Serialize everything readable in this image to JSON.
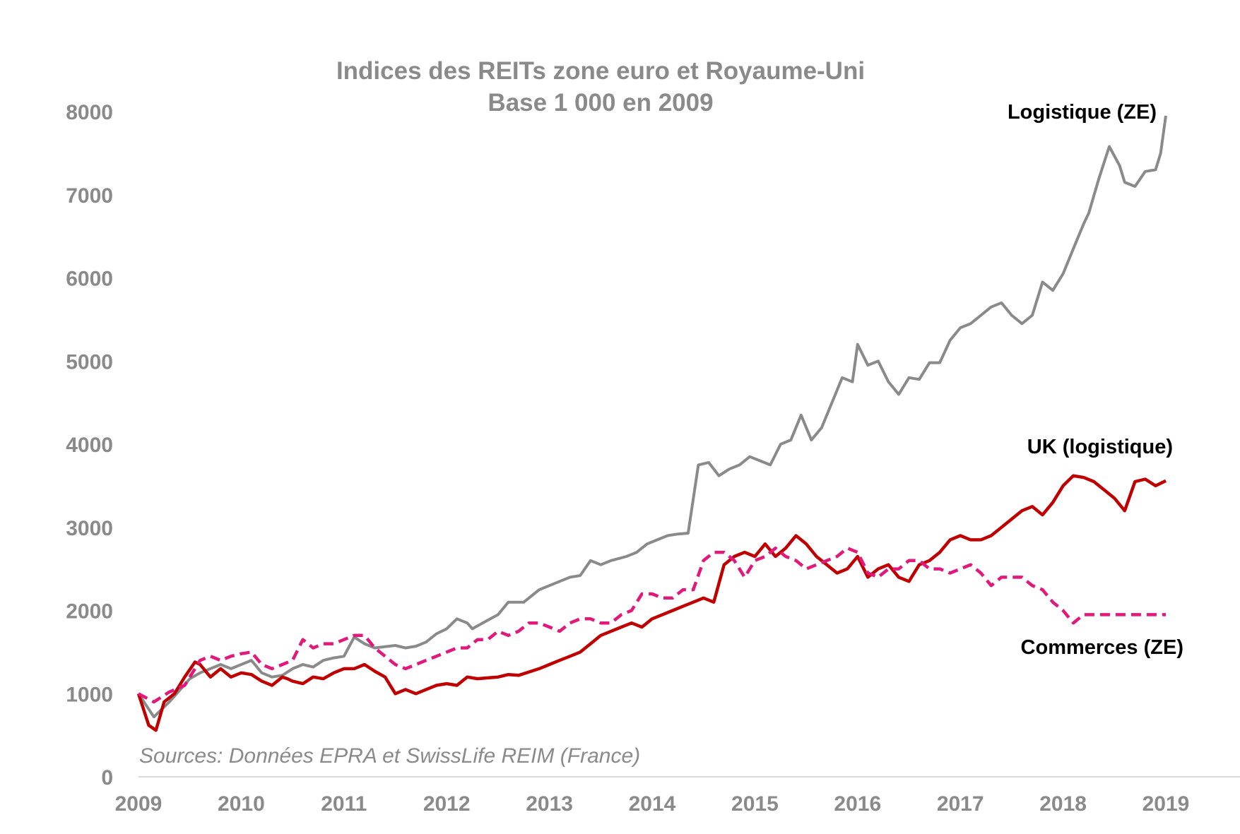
{
  "chart_data": {
    "type": "line",
    "title": "Indices des REITs zone euro et Royaume-Uni",
    "subtitle": "Base 1 000 en 2009",
    "source": "Sources: Données EPRA et SwissLife REIM (France)",
    "xlabel": "",
    "ylabel": "",
    "xlim": [
      2009,
      2019.75
    ],
    "ylim": [
      0,
      8000
    ],
    "x_ticks": [
      "2009",
      "2010",
      "2011",
      "2012",
      "2013",
      "2014",
      "2015",
      "2016",
      "2017",
      "2018",
      "2019"
    ],
    "y_ticks": [
      "0",
      "1000",
      "2000",
      "3000",
      "4000",
      "5000",
      "6000",
      "7000",
      "8000"
    ],
    "grid": false,
    "series": [
      {
        "name": "Logistique (ZE)",
        "color": "#8a8a8a",
        "dash": "solid",
        "x": [
          2009.0,
          2009.15,
          2009.3,
          2009.5,
          2009.6,
          2009.7,
          2009.8,
          2009.9,
          2010.0,
          2010.1,
          2010.2,
          2010.3,
          2010.4,
          2010.5,
          2010.6,
          2010.7,
          2010.8,
          2010.9,
          2011.0,
          2011.1,
          2011.2,
          2011.3,
          2011.5,
          2011.6,
          2011.7,
          2011.8,
          2011.9,
          2012.0,
          2012.1,
          2012.2,
          2012.25,
          2012.35,
          2012.5,
          2012.6,
          2012.75,
          2012.9,
          2013.0,
          2013.1,
          2013.2,
          2013.3,
          2013.4,
          2013.5,
          2013.6,
          2013.75,
          2013.85,
          2013.95,
          2014.05,
          2014.15,
          2014.25,
          2014.35,
          2014.45,
          2014.55,
          2014.65,
          2014.75,
          2014.85,
          2014.95,
          2015.05,
          2015.15,
          2015.25,
          2015.35,
          2015.45,
          2015.55,
          2015.65,
          2015.75,
          2015.85,
          2015.95,
          2016.0,
          2016.1,
          2016.2,
          2016.3,
          2016.4,
          2016.5,
          2016.6,
          2016.7,
          2016.8,
          2016.9,
          2017.0,
          2017.1,
          2017.2,
          2017.3,
          2017.4,
          2017.5,
          2017.6,
          2017.7,
          2017.8,
          2017.9,
          2018.0,
          2018.1,
          2018.2,
          2018.25,
          2018.35,
          2018.45,
          2018.55,
          2018.6,
          2018.7,
          2018.8,
          2018.9,
          2018.95,
          2019.0
        ],
        "y": [
          1000,
          720,
          900,
          1180,
          1250,
          1300,
          1350,
          1300,
          1350,
          1400,
          1250,
          1200,
          1220,
          1300,
          1350,
          1320,
          1400,
          1430,
          1450,
          1680,
          1600,
          1550,
          1580,
          1550,
          1570,
          1620,
          1720,
          1780,
          1900,
          1850,
          1780,
          1850,
          1950,
          2100,
          2100,
          2250,
          2300,
          2350,
          2400,
          2420,
          2600,
          2550,
          2600,
          2650,
          2700,
          2800,
          2850,
          2900,
          2920,
          2930,
          3750,
          3780,
          3620,
          3700,
          3750,
          3850,
          3800,
          3750,
          4000,
          4050,
          4350,
          4050,
          4200,
          4500,
          4800,
          4750,
          5200,
          4950,
          5000,
          4750,
          4600,
          4800,
          4780,
          4980,
          4980,
          5250,
          5400,
          5450,
          5550,
          5650,
          5700,
          5550,
          5450,
          5550,
          5950,
          5850,
          6050,
          6350,
          6650,
          6780,
          7200,
          7580,
          7350,
          7150,
          7100,
          7280,
          7300,
          7500,
          7950
        ]
      },
      {
        "name": "UK (logistique)",
        "color": "#c00000",
        "dash": "solid",
        "x": [
          2009.0,
          2009.1,
          2009.17,
          2009.25,
          2009.35,
          2009.45,
          2009.55,
          2009.6,
          2009.7,
          2009.8,
          2009.9,
          2010.0,
          2010.1,
          2010.2,
          2010.3,
          2010.4,
          2010.45,
          2010.5,
          2010.6,
          2010.7,
          2010.8,
          2010.9,
          2011.0,
          2011.1,
          2011.2,
          2011.3,
          2011.4,
          2011.5,
          2011.6,
          2011.7,
          2011.8,
          2011.9,
          2012.0,
          2012.1,
          2012.2,
          2012.3,
          2012.4,
          2012.5,
          2012.6,
          2012.7,
          2012.8,
          2012.9,
          2013.0,
          2013.1,
          2013.2,
          2013.3,
          2013.4,
          2013.5,
          2013.6,
          2013.7,
          2013.8,
          2013.9,
          2014.0,
          2014.1,
          2014.2,
          2014.3,
          2014.4,
          2014.5,
          2014.6,
          2014.7,
          2014.8,
          2014.9,
          2015.0,
          2015.1,
          2015.2,
          2015.3,
          2015.4,
          2015.5,
          2015.6,
          2015.7,
          2015.8,
          2015.9,
          2016.0,
          2016.1,
          2016.2,
          2016.3,
          2016.4,
          2016.5,
          2016.6,
          2016.7,
          2016.8,
          2016.9,
          2017.0,
          2017.1,
          2017.2,
          2017.3,
          2017.4,
          2017.5,
          2017.6,
          2017.7,
          2017.8,
          2017.9,
          2018.0,
          2018.1,
          2018.2,
          2018.3,
          2018.4,
          2018.5,
          2018.6,
          2018.7,
          2018.8,
          2018.9,
          2019.0
        ],
        "y": [
          1000,
          620,
          560,
          900,
          1000,
          1200,
          1380,
          1350,
          1200,
          1300,
          1200,
          1250,
          1230,
          1150,
          1100,
          1200,
          1180,
          1150,
          1120,
          1200,
          1180,
          1250,
          1300,
          1300,
          1350,
          1270,
          1200,
          1000,
          1050,
          1000,
          1050,
          1100,
          1120,
          1100,
          1200,
          1180,
          1190,
          1200,
          1230,
          1220,
          1260,
          1300,
          1350,
          1400,
          1450,
          1500,
          1600,
          1700,
          1750,
          1800,
          1850,
          1800,
          1900,
          1950,
          2000,
          2050,
          2100,
          2150,
          2100,
          2550,
          2650,
          2700,
          2650,
          2800,
          2650,
          2750,
          2900,
          2800,
          2650,
          2550,
          2450,
          2500,
          2650,
          2400,
          2500,
          2550,
          2400,
          2350,
          2550,
          2600,
          2700,
          2850,
          2900,
          2850,
          2850,
          2900,
          3000,
          3100,
          3200,
          3250,
          3150,
          3300,
          3500,
          3620,
          3600,
          3550,
          3450,
          3350,
          3200,
          3550,
          3580,
          3500,
          3560
        ],
        "x_note": ""
      },
      {
        "name": "Commerces (ZE)",
        "color": "#e0197a",
        "dash": "dashed",
        "x": [
          2009.0,
          2009.15,
          2009.3,
          2009.45,
          2009.6,
          2009.7,
          2009.8,
          2009.9,
          2010.0,
          2010.1,
          2010.2,
          2010.3,
          2010.4,
          2010.5,
          2010.6,
          2010.7,
          2010.8,
          2010.9,
          2011.0,
          2011.1,
          2011.2,
          2011.3,
          2011.4,
          2011.5,
          2011.6,
          2011.7,
          2011.8,
          2011.9,
          2012.0,
          2012.1,
          2012.2,
          2012.3,
          2012.4,
          2012.5,
          2012.6,
          2012.7,
          2012.8,
          2012.9,
          2013.0,
          2013.1,
          2013.2,
          2013.3,
          2013.4,
          2013.5,
          2013.6,
          2013.7,
          2013.8,
          2013.9,
          2014.0,
          2014.1,
          2014.2,
          2014.3,
          2014.4,
          2014.5,
          2014.6,
          2014.7,
          2014.8,
          2014.9,
          2015.0,
          2015.1,
          2015.2,
          2015.3,
          2015.4,
          2015.5,
          2015.6,
          2015.7,
          2015.8,
          2015.9,
          2016.0,
          2016.1,
          2016.2,
          2016.3,
          2016.4,
          2016.5,
          2016.6,
          2016.7,
          2016.8,
          2016.9,
          2017.0,
          2017.1,
          2017.2,
          2017.3,
          2017.4,
          2017.5,
          2017.6,
          2017.7,
          2017.8,
          2017.9,
          2018.0,
          2018.1,
          2018.2,
          2018.3,
          2018.4,
          2018.5,
          2018.6,
          2018.7,
          2018.8,
          2018.9,
          2019.0
        ],
        "y": [
          1000,
          900,
          1020,
          1100,
          1400,
          1450,
          1400,
          1450,
          1480,
          1500,
          1350,
          1300,
          1350,
          1400,
          1650,
          1550,
          1600,
          1600,
          1650,
          1700,
          1700,
          1550,
          1450,
          1350,
          1300,
          1350,
          1400,
          1450,
          1500,
          1550,
          1550,
          1650,
          1650,
          1750,
          1700,
          1750,
          1850,
          1850,
          1800,
          1750,
          1850,
          1900,
          1900,
          1850,
          1850,
          1950,
          2000,
          2200,
          2200,
          2150,
          2150,
          2250,
          2250,
          2600,
          2700,
          2700,
          2600,
          2400,
          2600,
          2650,
          2750,
          2650,
          2600,
          2500,
          2550,
          2600,
          2650,
          2750,
          2700,
          2450,
          2400,
          2500,
          2500,
          2600,
          2600,
          2500,
          2500,
          2450,
          2500,
          2550,
          2450,
          2300,
          2400,
          2400,
          2400,
          2300,
          2250,
          2100,
          2000,
          1850,
          1950,
          1950,
          1950,
          1950,
          1950,
          1950,
          1950,
          1950,
          1950
        ],
        "x_note": ""
      }
    ]
  }
}
